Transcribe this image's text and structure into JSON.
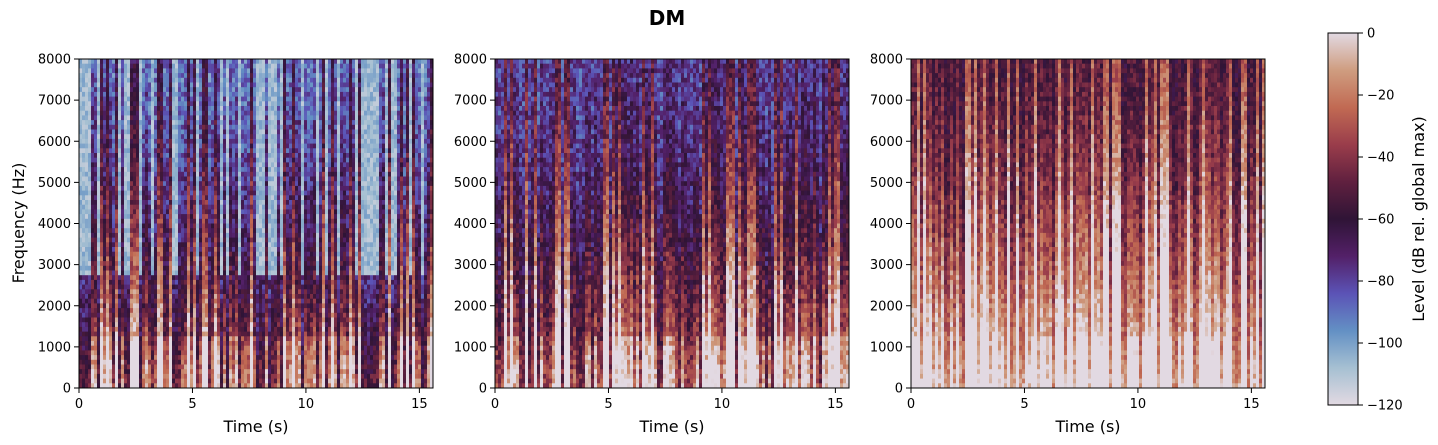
{
  "figure_title": "DM",
  "colors": {
    "colormap": [
      "#e2d9e2",
      "#a6c0d2",
      "#6390c4",
      "#5b53b6",
      "#532068",
      "#2f1436",
      "#60203f",
      "#9a3d4b",
      "#c16a53",
      "#cf9d80",
      "#e2d9e2"
    ]
  },
  "chart_data": [
    {
      "type": "heatmap",
      "panel": 1,
      "xlabel": "Time (s)",
      "ylabel": "Frequency (Hz)",
      "xlim": [
        0,
        15.6
      ],
      "ylim": [
        0,
        8000
      ],
      "xticks": [
        "0",
        "5",
        "10",
        "15"
      ],
      "yticks": [
        "0",
        "1000",
        "2000",
        "3000",
        "4000",
        "5000",
        "6000",
        "7000",
        "8000"
      ]
    },
    {
      "type": "heatmap",
      "panel": 2,
      "xlabel": "Time (s)",
      "ylabel": "",
      "xlim": [
        0,
        15.6
      ],
      "ylim": [
        0,
        8000
      ],
      "xticks": [
        "0",
        "5",
        "10",
        "15"
      ],
      "yticks": [
        "0",
        "1000",
        "2000",
        "3000",
        "4000",
        "5000",
        "6000",
        "7000",
        "8000"
      ]
    },
    {
      "type": "heatmap",
      "panel": 3,
      "xlabel": "Time (s)",
      "ylabel": "",
      "xlim": [
        0,
        15.6
      ],
      "ylim": [
        0,
        8000
      ],
      "xticks": [
        "0",
        "5",
        "10",
        "15"
      ],
      "yticks": [
        "0",
        "1000",
        "2000",
        "3000",
        "4000",
        "5000",
        "6000",
        "7000",
        "8000"
      ]
    }
  ],
  "colorbar": {
    "label": "Level (dB rel. global max)",
    "range": [
      -120,
      0
    ],
    "ticks": [
      "0",
      "−20",
      "−40",
      "−60",
      "−80",
      "−100",
      "−120"
    ]
  }
}
